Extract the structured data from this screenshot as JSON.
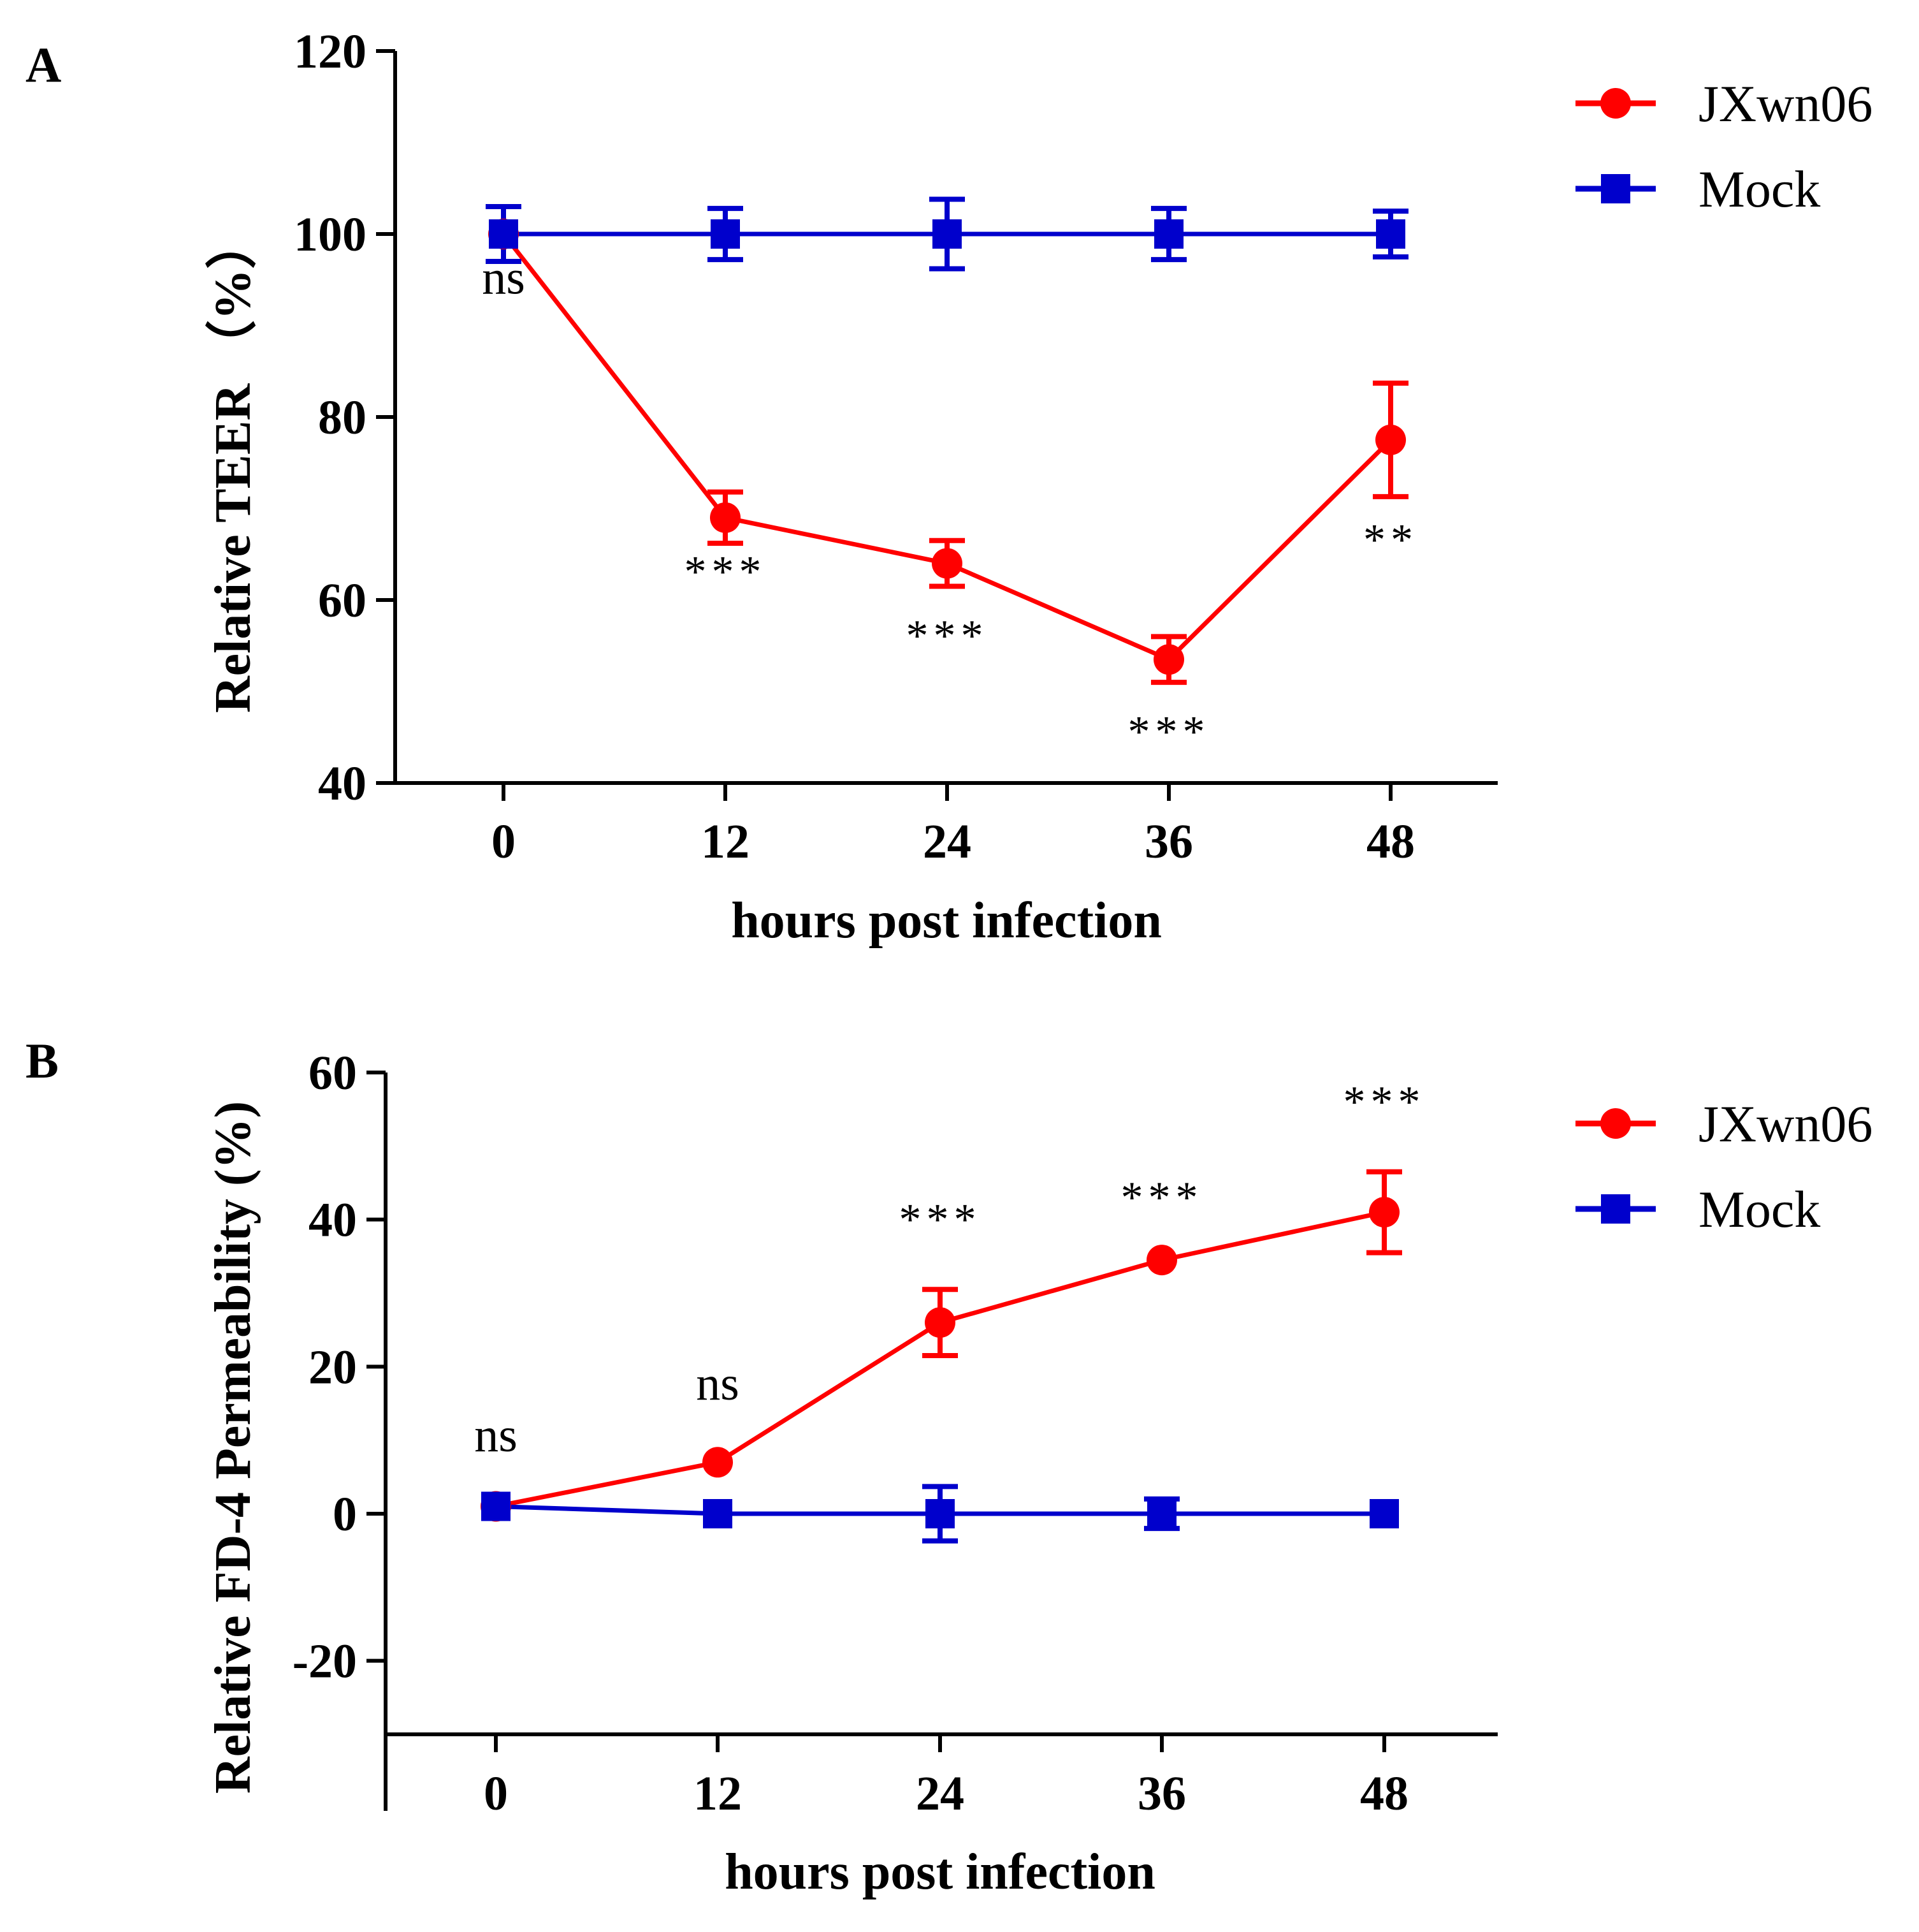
{
  "chart_data": [
    {
      "panel": "A",
      "type": "line",
      "title": "",
      "xlabel": "hours post infection",
      "ylabel": "Relative TEER （%）",
      "x": [
        0,
        12,
        24,
        36,
        48
      ],
      "xticks": [
        "0",
        "12",
        "24",
        "36",
        "48"
      ],
      "ylim": [
        40,
        120
      ],
      "yticks": [
        40,
        60,
        80,
        100,
        120
      ],
      "series": [
        {
          "name": "JXwn06",
          "color": "#ff0000",
          "marker": "circle",
          "values": [
            100,
            69,
            64,
            53.5,
            77.5
          ],
          "errors": [
            3,
            2.8,
            2.5,
            2.5,
            6.2
          ]
        },
        {
          "name": "Mock",
          "color": "#0000cc",
          "marker": "square",
          "values": [
            100,
            100,
            100,
            100,
            100
          ],
          "errors": [
            3,
            2.8,
            3.8,
            2.8,
            2.5
          ]
        }
      ],
      "annotations": [
        {
          "x": 0,
          "y": 93.5,
          "text": "ns"
        },
        {
          "x": 12,
          "y": 61.5,
          "text": "***"
        },
        {
          "x": 24,
          "y": 54.5,
          "text": "***"
        },
        {
          "x": 36,
          "y": 44,
          "text": "***"
        },
        {
          "x": 48,
          "y": 65,
          "text": "**"
        }
      ],
      "legend": "top-right"
    },
    {
      "panel": "B",
      "type": "line",
      "title": "",
      "xlabel": "hours post infection",
      "ylabel": "Relative FD-4 Permeability (%)",
      "x": [
        0,
        12,
        24,
        36,
        48
      ],
      "xticks": [
        "0",
        "12",
        "24",
        "36",
        "48"
      ],
      "ylim": [
        -30,
        60
      ],
      "yticks": [
        -20,
        0,
        20,
        40,
        60
      ],
      "series": [
        {
          "name": "JXwn06",
          "color": "#ff0000",
          "marker": "circle",
          "values": [
            1,
            7,
            26,
            34.5,
            41
          ],
          "errors": [
            0,
            0,
            4.5,
            0,
            5.5
          ]
        },
        {
          "name": "Mock",
          "color": "#0000cc",
          "marker": "square",
          "values": [
            1,
            0,
            0,
            0,
            0
          ],
          "errors": [
            0,
            0,
            3.7,
            2,
            0
          ]
        }
      ],
      "annotations": [
        {
          "x": 0,
          "y": 8.5,
          "text": "ns"
        },
        {
          "x": 12,
          "y": 15.5,
          "text": "ns"
        },
        {
          "x": 24,
          "y": 38,
          "text": "***"
        },
        {
          "x": 36,
          "y": 41,
          "text": "***"
        },
        {
          "x": 48,
          "y": 54,
          "text": "***"
        }
      ],
      "legend": "top-right"
    }
  ]
}
